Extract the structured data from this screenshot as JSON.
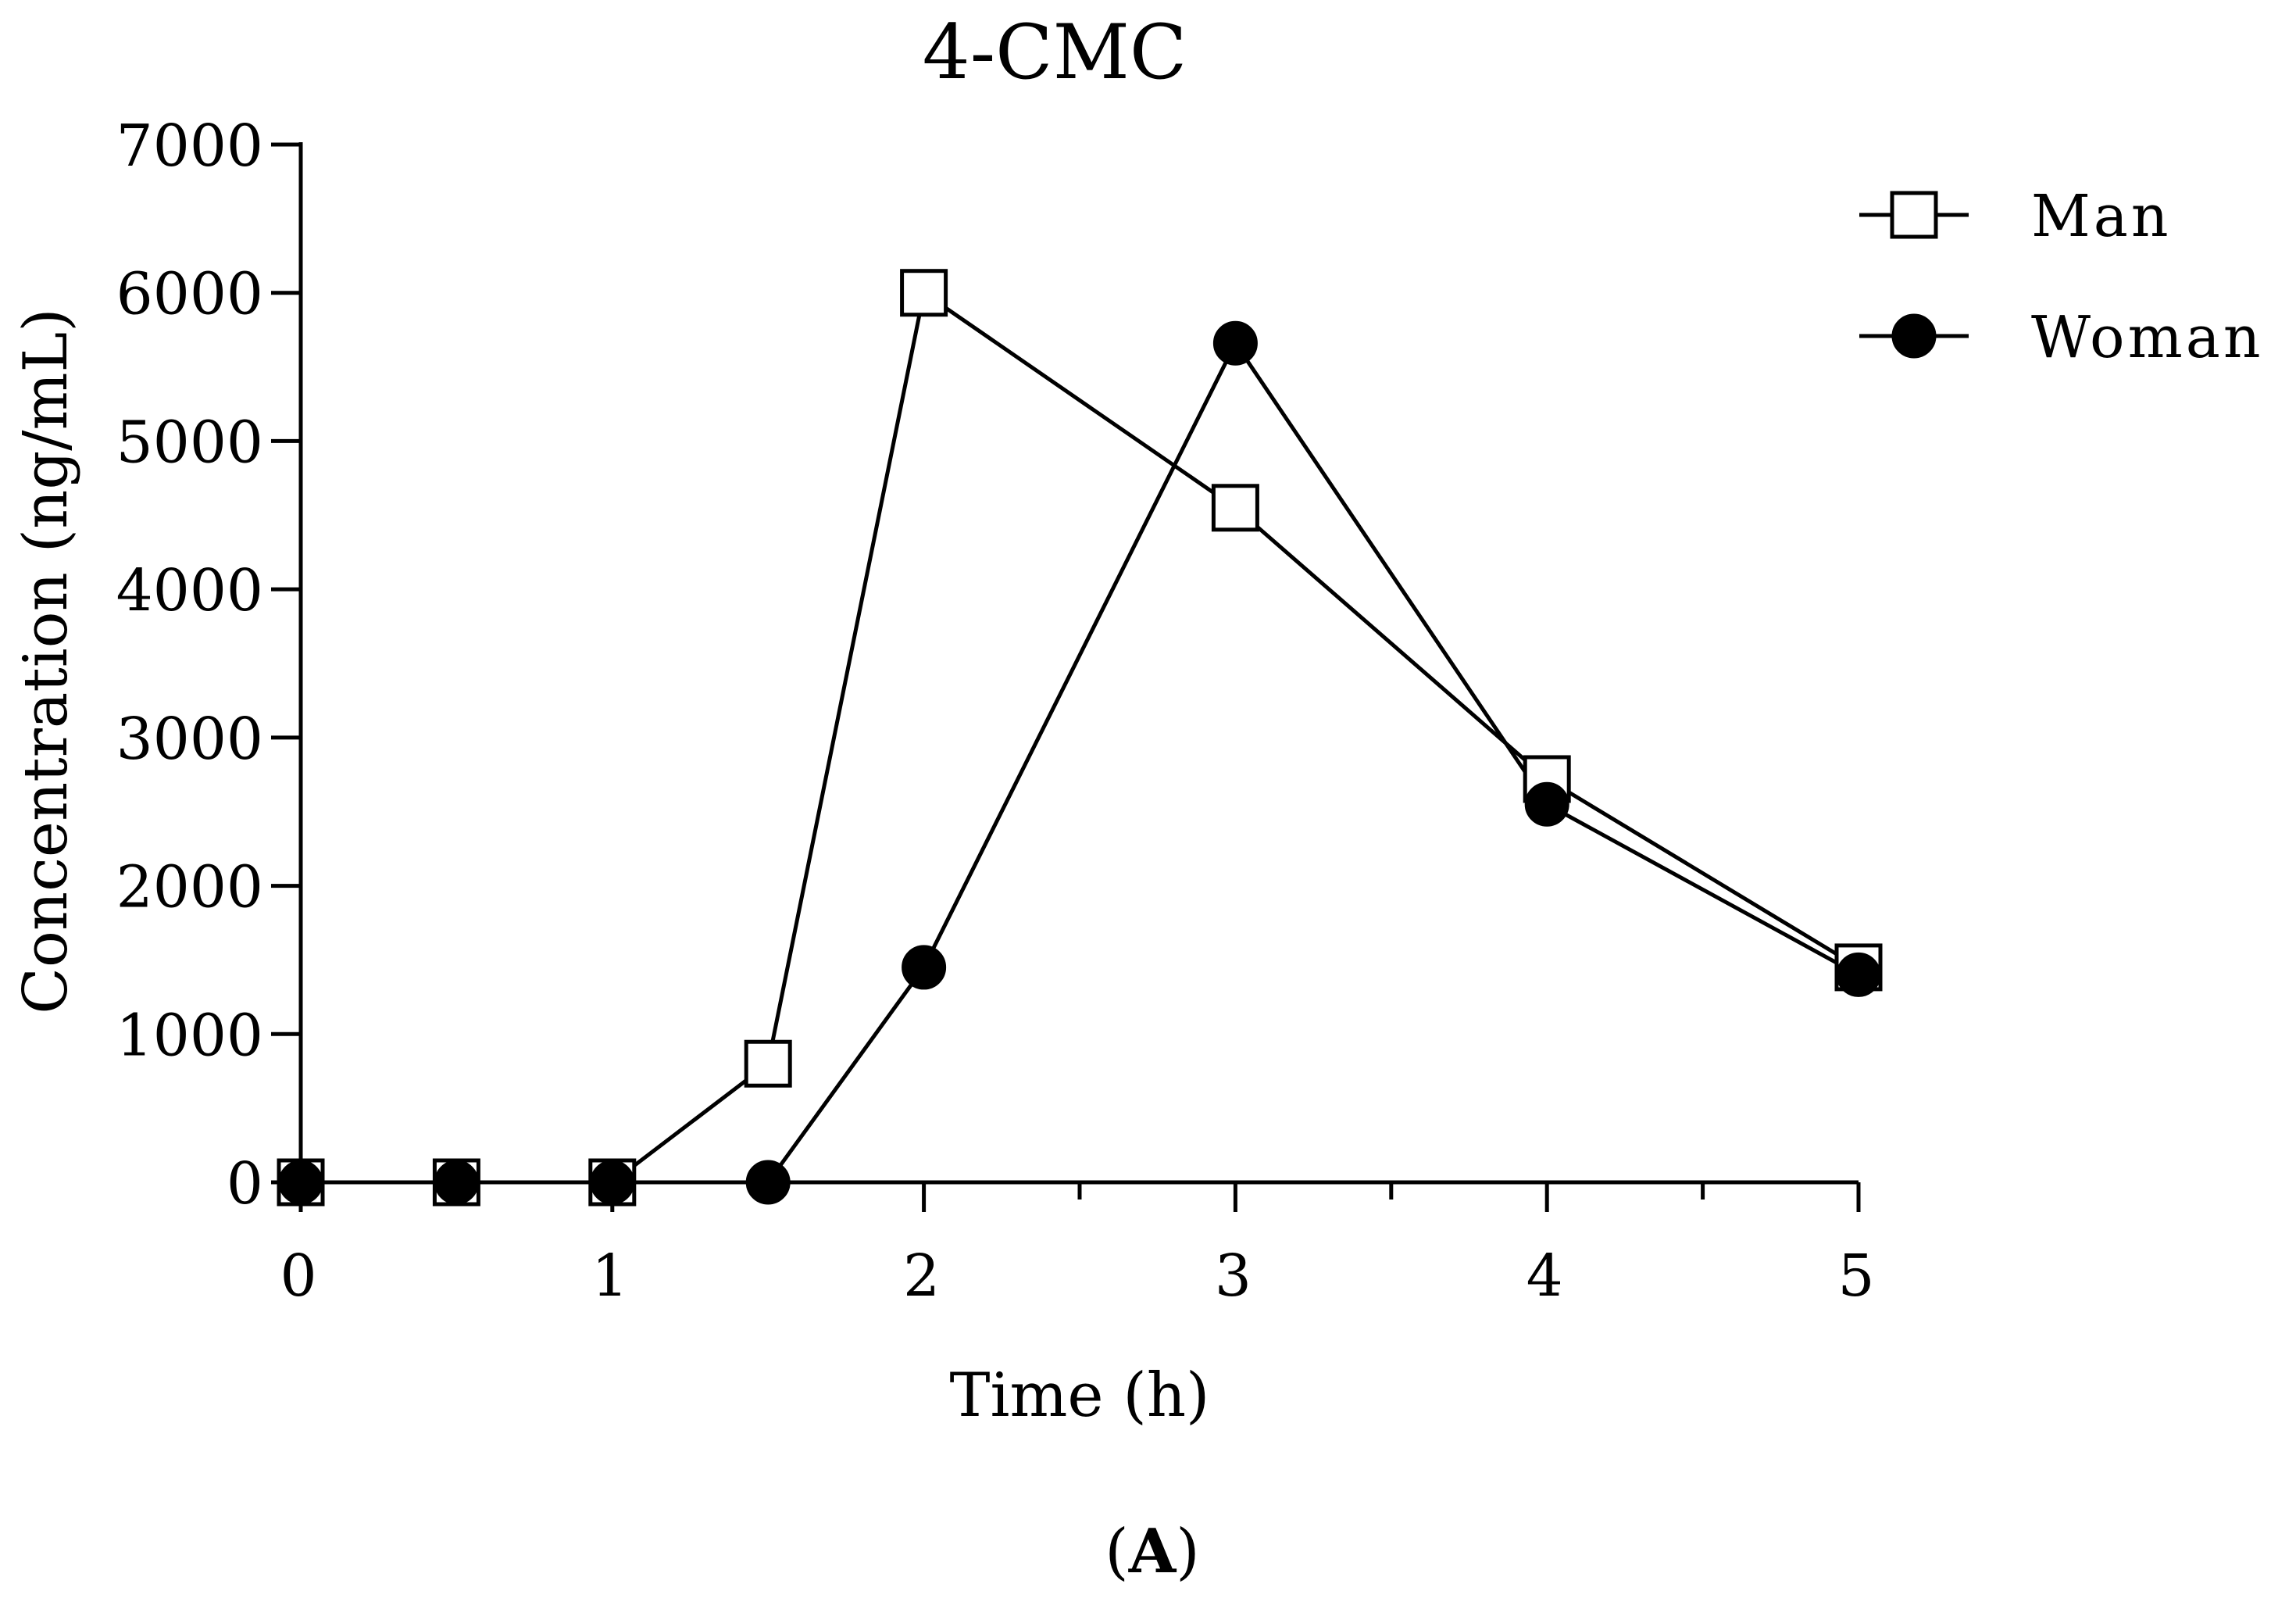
{
  "chart_data": {
    "type": "line",
    "title": "4-CMC",
    "xlabel": "Time (h)",
    "ylabel": "Concentration (ng/mL)",
    "xlim": [
      0,
      5
    ],
    "ylim": [
      0,
      7000
    ],
    "xticks": [
      0,
      1,
      2,
      3,
      4,
      5
    ],
    "xtick_labels": [
      "0",
      "1",
      "2",
      "3",
      "4",
      "5"
    ],
    "yticks": [
      0,
      1000,
      2000,
      3000,
      4000,
      5000,
      6000,
      7000
    ],
    "ytick_labels": [
      "0",
      "1000",
      "2000",
      "3000",
      "4000",
      "5000",
      "6000",
      "7000"
    ],
    "grid": false,
    "legend_position": "top-right",
    "series": [
      {
        "name": "Man",
        "marker": "open-square",
        "x": [
          0,
          0.5,
          1,
          1.5,
          2,
          3,
          4,
          5
        ],
        "y": [
          0,
          0,
          0,
          800,
          6000,
          4550,
          2720,
          1450
        ]
      },
      {
        "name": "Woman",
        "marker": "filled-circle",
        "x": [
          0,
          0.5,
          1,
          1.5,
          2,
          3,
          4,
          5
        ],
        "y": [
          0,
          0,
          0,
          0,
          1450,
          5660,
          2550,
          1400
        ]
      }
    ]
  },
  "panel_label": {
    "open": "(",
    "letter": "A",
    "close": ")"
  }
}
